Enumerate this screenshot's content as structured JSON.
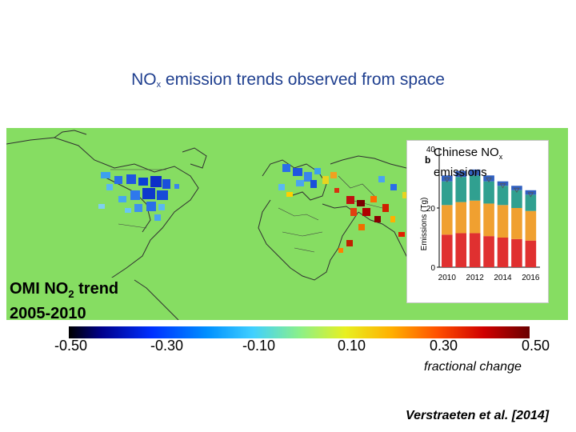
{
  "title": {
    "main": "NO",
    "sub": "x",
    "rest": " emission trends observed from space"
  },
  "map": {
    "label_line1_main": "OMI NO",
    "label_line1_sub": "2",
    "label_line1_rest": " trend",
    "label_line2": "2005-2010",
    "background_color": "#86dd62"
  },
  "colorbar": {
    "ticks": [
      "-0.50",
      "-0.30",
      "-0.10",
      "0.10",
      "0.30",
      "0.50"
    ],
    "label": "fractional  change"
  },
  "inset": {
    "caption_line1_main": "Chinese NO",
    "caption_line1_sub": "x",
    "caption_line2": "emissions",
    "panel_letter": "b",
    "ylabel": "Emissions (Tg)"
  },
  "chart_data": {
    "type": "bar",
    "stacked": true,
    "ylabel": "Emissions (Tg)",
    "ylim": [
      0,
      40
    ],
    "yticks": [
      "0",
      "20",
      "40"
    ],
    "xticks": [
      "2010",
      "2012",
      "2014",
      "2016"
    ],
    "categories": [
      "2010",
      "2011",
      "2012",
      "2013",
      "2014",
      "2015",
      "2016"
    ],
    "series": [
      {
        "color": "#e03030",
        "values": [
          11,
          11.5,
          11.5,
          10.5,
          10,
          9.5,
          9
        ]
      },
      {
        "color": "#f0a030",
        "values": [
          10,
          10.5,
          11,
          11,
          11,
          10.5,
          10
        ]
      },
      {
        "color": "#30a090",
        "values": [
          8,
          8.5,
          8.5,
          7.5,
          6.5,
          6,
          5.5
        ]
      },
      {
        "color": "#3060c0",
        "values": [
          2,
          2,
          2,
          2,
          1.5,
          1.5,
          1.5
        ]
      }
    ]
  },
  "citation": "Verstraeten et al. [2014]"
}
